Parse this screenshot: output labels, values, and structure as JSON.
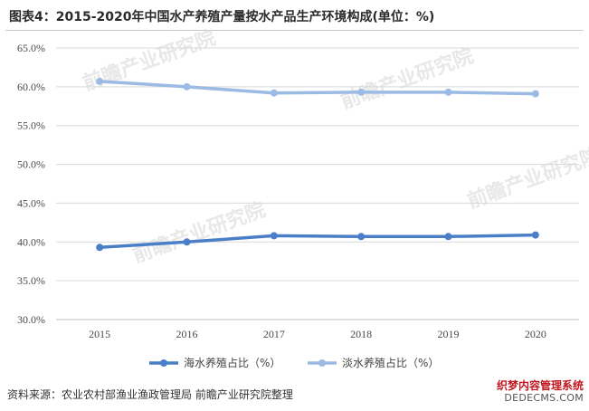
{
  "title": "图表4：2015-2020年中国水产养殖产量按水产品生产环境构成(单位：%)",
  "source": "资料来源：农业农村部渔业渔政管理局 前瞻产业研究院整理",
  "watermark_text": "前瞻产业研究院",
  "stamp": {
    "line1": "织梦内容管理系统",
    "line2": "DEDECMS.COM"
  },
  "colors": {
    "series1": "#4a7fc8",
    "series2": "#9bbbe4",
    "grid": "#d9d9d9",
    "axis": "#bfbfbf"
  },
  "chart_data": {
    "type": "line",
    "x": [
      "2015",
      "2016",
      "2017",
      "2018",
      "2019",
      "2020"
    ],
    "ylim": [
      30,
      65
    ],
    "yticks": [
      30,
      35,
      40,
      45,
      50,
      55,
      60,
      65
    ],
    "ytick_labels": [
      "30.0%",
      "35.0%",
      "40.0%",
      "45.0%",
      "50.0%",
      "55.0%",
      "60.0%",
      "65.0%"
    ],
    "grid": true,
    "legend": "bottom-center",
    "series": [
      {
        "name": "海水养殖占比（%）",
        "values": [
          39.3,
          40.0,
          40.8,
          40.7,
          40.7,
          40.9
        ]
      },
      {
        "name": "淡水养殖占比（%）",
        "values": [
          60.7,
          60.0,
          59.2,
          59.3,
          59.3,
          59.1
        ]
      }
    ]
  }
}
